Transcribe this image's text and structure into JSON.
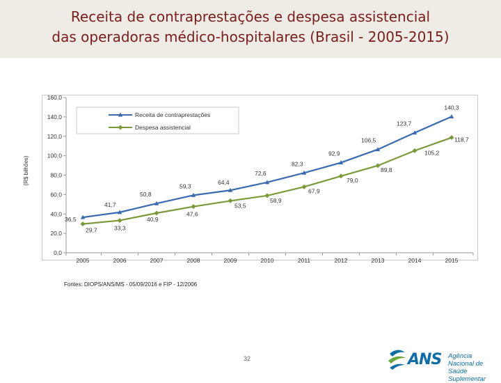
{
  "header": {
    "title_line1": "Receita de contraprestações e despesa assistencial",
    "title_line2": "das operadoras médico-hospitalares (Brasil - 2005-2015)"
  },
  "chart_data": {
    "type": "line",
    "title": "Receita de contraprestações e despesa assistencial das operadoras médico-hospitalares (Brasil - 2005-2015)",
    "xlabel": "",
    "ylabel": "(R$ bilhões)",
    "ylim": [
      0,
      160
    ],
    "yticks": [
      "0,0",
      "20,0",
      "40,0",
      "60,0",
      "80,0",
      "100,0",
      "120,0",
      "140,0",
      "160,0"
    ],
    "grid": false,
    "legend_position": "top-left",
    "categories": [
      "2005",
      "2006",
      "2007",
      "2008",
      "2009",
      "2010",
      "2011",
      "2012",
      "2013",
      "2014",
      "2015"
    ],
    "series": [
      {
        "name": "Receita de contraprestações",
        "color": "#3a6ab0",
        "marker": "triangle",
        "values": [
          36.5,
          41.7,
          50.8,
          59.3,
          64.4,
          72.6,
          82.3,
          92.9,
          106.5,
          123.7,
          140.3
        ],
        "labels": [
          "36,5",
          "41,7",
          "50,8",
          "59,3",
          "64,4",
          "72,6",
          "82,3",
          "92,9",
          "106,5",
          "123,7",
          "140,3"
        ]
      },
      {
        "name": "Despesa assistencial",
        "color": "#7a9a3a",
        "marker": "diamond",
        "values": [
          29.7,
          33.3,
          40.9,
          47.6,
          53.5,
          58.9,
          67.9,
          79.0,
          89.8,
          105.2,
          118.7
        ],
        "labels": [
          "29,7",
          "33,3",
          "40,9",
          "47,6",
          "53,5",
          "58,9",
          "67,9",
          "79,0",
          "89,8",
          "105,2",
          "118,7"
        ]
      }
    ]
  },
  "footer": {
    "source": "Fontes: DIOPS/ANS/MS - 05/09/2016 e FIP - 12/2006",
    "page_number": "32"
  },
  "logo": {
    "wordmark": "ANS",
    "line1": "Agência Nacional de",
    "line2": "Saúde Suplementar",
    "colors": {
      "blue": "#0f6ea8",
      "green": "#6aaa3a"
    }
  }
}
